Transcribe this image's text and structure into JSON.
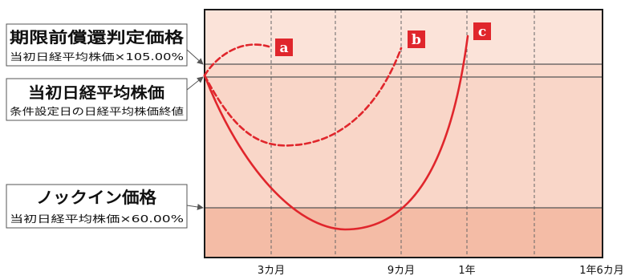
{
  "labels": {
    "early_redemption": {
      "title": "期限前償還判定価格",
      "subtitle": "当初日経平均株価×105.00%"
    },
    "initial": {
      "title": "当初日経平均株価",
      "subtitle": "条件設定日の日経平均株価終値"
    },
    "knock_in": {
      "title": "ノックイン価格",
      "subtitle": "当初日経平均株価×60.00%"
    }
  },
  "x_ticks": [
    "3カ月",
    "9カ月",
    "1年",
    "1年6カ月"
  ],
  "paths": [
    {
      "marker": "a",
      "style": "dashed"
    },
    {
      "marker": "b",
      "style": "dashed"
    },
    {
      "marker": "c",
      "style": "solid"
    }
  ],
  "colors": {
    "curve": "#e0262c",
    "marker_bg": "#e0262c",
    "zone_top": "#fbe3d9",
    "zone_middle": "#f9d6c8",
    "zone_bottom": "#f4bca6",
    "frame": "#1a1a1a",
    "level_line": "#555555"
  }
}
